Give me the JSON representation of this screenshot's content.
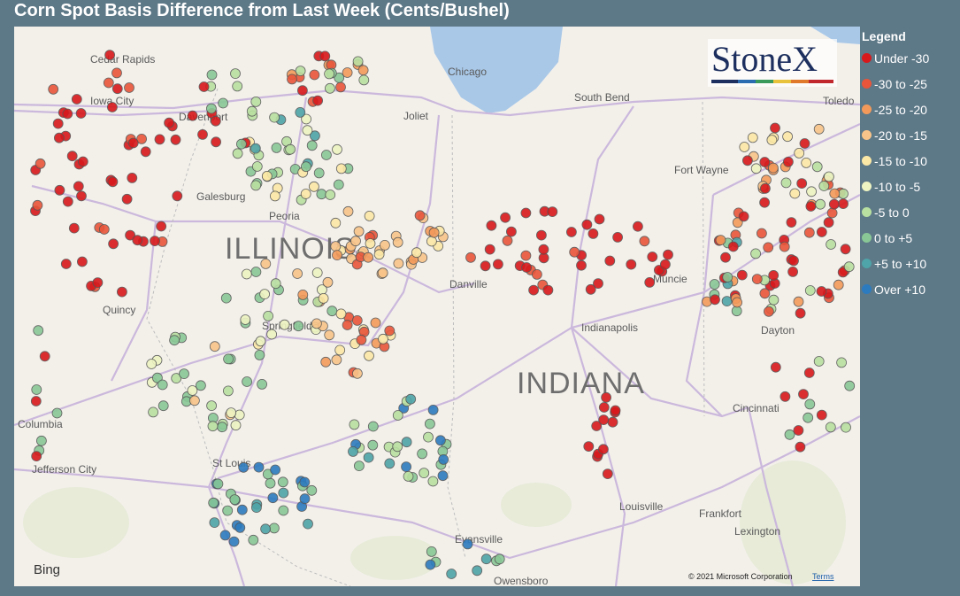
{
  "header": {
    "title": "Corn Spot Basis Difference from Last Week (Cents/Bushel)"
  },
  "legend": {
    "title": "Legend",
    "items": [
      {
        "label": "Under -30",
        "color": "#d7191c"
      },
      {
        "label": "-30 to -25",
        "color": "#e8553a"
      },
      {
        "label": "-25 to -20",
        "color": "#f39a5b"
      },
      {
        "label": "-20 to -15",
        "color": "#f9c489"
      },
      {
        "label": "-15 to -10",
        "color": "#fbe8a6"
      },
      {
        "label": "-10 to -5",
        "color": "#eef4c2"
      },
      {
        "label": "-5 to 0",
        "color": "#b9e0a1"
      },
      {
        "label": "0 to +5",
        "color": "#89c896"
      },
      {
        "label": "+5 to +10",
        "color": "#4ea4a8"
      },
      {
        "label": "Over +10",
        "color": "#2c7bbf"
      }
    ]
  },
  "map": {
    "cities": [
      "Cedar Rapids",
      "Iowa City",
      "Davenport",
      "Chicago",
      "Joliet",
      "South Bend",
      "Toledo",
      "Galesburg",
      "Peoria",
      "Fort Wayne",
      "Danville",
      "Muncie",
      "Quincy",
      "Springfield",
      "Indianapolis",
      "Dayton",
      "Cincinnati",
      "Columbia",
      "Jefferson City",
      "St Louis",
      "Louisville",
      "Frankfort",
      "Lexington",
      "Evansville",
      "Owensboro"
    ],
    "states": [
      "ILLINOIS",
      "INDIANA"
    ],
    "logo": "StoneX",
    "provider": "Bing",
    "copyright": "© 2021 Microsoft Corporation",
    "terms": "Terms"
  }
}
